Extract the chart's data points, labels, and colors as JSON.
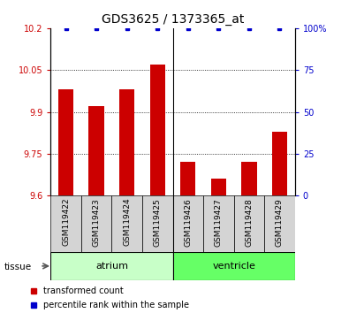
{
  "title": "GDS3625 / 1373365_at",
  "samples": [
    "GSM119422",
    "GSM119423",
    "GSM119424",
    "GSM119425",
    "GSM119426",
    "GSM119427",
    "GSM119428",
    "GSM119429"
  ],
  "red_values": [
    9.98,
    9.92,
    9.98,
    10.07,
    9.72,
    9.66,
    9.72,
    9.83
  ],
  "blue_values": [
    100,
    100,
    100,
    100,
    100,
    100,
    100,
    100
  ],
  "ylim_left": [
    9.6,
    10.2
  ],
  "ylim_right": [
    0,
    100
  ],
  "yticks_left": [
    9.6,
    9.75,
    9.9,
    10.05,
    10.2
  ],
  "yticks_right": [
    0,
    25,
    50,
    75,
    100
  ],
  "ytick_labels_left": [
    "9.6",
    "9.75",
    "9.9",
    "10.05",
    "10.2"
  ],
  "ytick_labels_right": [
    "0",
    "25",
    "50",
    "75",
    "100%"
  ],
  "groups": [
    {
      "label": "atrium",
      "start": 0,
      "end": 4,
      "color": "#c8ffc8"
    },
    {
      "label": "ventricle",
      "start": 4,
      "end": 8,
      "color": "#66ff66"
    }
  ],
  "legend_red_label": "transformed count",
  "legend_blue_label": "percentile rank within the sample",
  "bar_color": "#cc0000",
  "dot_color": "#0000cc",
  "tick_color_left": "#cc0000",
  "tick_color_right": "#0000cc",
  "bar_bottom": 9.6,
  "sample_box_color": "#d4d4d4",
  "grid_yticks": [
    9.75,
    9.9,
    10.05
  ]
}
